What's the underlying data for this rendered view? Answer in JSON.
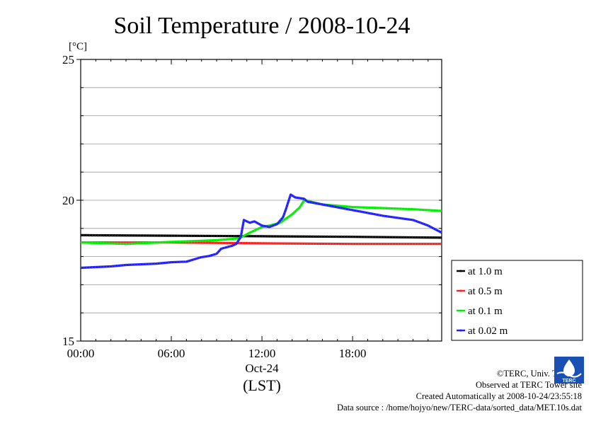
{
  "chart_data": {
    "type": "line",
    "title": "Soil Temperature / 2008-10-24",
    "ylabel": "[°C]",
    "xlabel": "(LST)",
    "ylim": [
      15,
      25
    ],
    "yticks": [
      15,
      20,
      25
    ],
    "ygrid_step": 1,
    "xlim": [
      0,
      23.9
    ],
    "xticks": [
      {
        "x": 0,
        "label": "00:00"
      },
      {
        "x": 6,
        "label": "06:00"
      },
      {
        "x": 12,
        "label": "12:00"
      },
      {
        "x": 18,
        "label": "18:00"
      }
    ],
    "date_label": "Oct-24",
    "grid": "horizontal",
    "legend_position": "bottom-right, outside plot",
    "series": [
      {
        "name": "at 1.0 m",
        "color": "#000000",
        "points": [
          [
            0,
            18.76
          ],
          [
            6,
            18.74
          ],
          [
            12,
            18.72
          ],
          [
            18,
            18.7
          ],
          [
            23.9,
            18.67
          ]
        ]
      },
      {
        "name": "at 0.5 m",
        "color": "#ff2020",
        "points": [
          [
            0,
            18.5
          ],
          [
            6,
            18.5
          ],
          [
            12,
            18.47
          ],
          [
            18,
            18.45
          ],
          [
            23.9,
            18.45
          ]
        ]
      },
      {
        "name": "at 0.1 m",
        "color": "#00ee00",
        "points": [
          [
            0,
            18.5
          ],
          [
            3,
            18.45
          ],
          [
            6,
            18.52
          ],
          [
            9,
            18.58
          ],
          [
            10.5,
            18.65
          ],
          [
            11.2,
            18.85
          ],
          [
            12,
            19.05
          ],
          [
            12.5,
            19.1
          ],
          [
            13.2,
            19.2
          ],
          [
            14,
            19.5
          ],
          [
            14.5,
            19.75
          ],
          [
            14.8,
            20.0
          ],
          [
            15,
            19.98
          ],
          [
            16,
            19.85
          ],
          [
            18,
            19.76
          ],
          [
            20,
            19.72
          ],
          [
            22,
            19.68
          ],
          [
            23.9,
            19.62
          ]
        ]
      },
      {
        "name": "at 0.02 m",
        "color": "#2020ff",
        "points": [
          [
            0,
            17.6
          ],
          [
            2,
            17.65
          ],
          [
            3,
            17.7
          ],
          [
            5,
            17.75
          ],
          [
            6,
            17.8
          ],
          [
            7,
            17.82
          ],
          [
            7.5,
            17.9
          ],
          [
            8,
            17.98
          ],
          [
            8.5,
            18.02
          ],
          [
            9,
            18.1
          ],
          [
            9.3,
            18.28
          ],
          [
            10,
            18.38
          ],
          [
            10.3,
            18.45
          ],
          [
            10.6,
            18.7
          ],
          [
            10.8,
            19.3
          ],
          [
            11.2,
            19.2
          ],
          [
            11.5,
            19.25
          ],
          [
            12,
            19.1
          ],
          [
            12.5,
            19.05
          ],
          [
            13,
            19.15
          ],
          [
            13.4,
            19.4
          ],
          [
            13.6,
            19.7
          ],
          [
            13.9,
            20.2
          ],
          [
            14.2,
            20.1
          ],
          [
            14.8,
            20.05
          ],
          [
            15,
            19.95
          ],
          [
            16,
            19.85
          ],
          [
            18,
            19.65
          ],
          [
            20,
            19.45
          ],
          [
            22,
            19.3
          ],
          [
            23,
            19.1
          ],
          [
            23.9,
            18.85
          ]
        ]
      }
    ]
  },
  "credits": {
    "copyright": "©TERC, Univ. Tsukuba",
    "observed": "Observed at TERC Tower site",
    "created": "Created Automatically at 2008-10-24/23:55:18",
    "source": "Data source : /home/hojyo/new/TERC-data/sorted_data/MET.10s.dat"
  },
  "logo": {
    "text": "TERC",
    "color": "#1a4fb4"
  }
}
